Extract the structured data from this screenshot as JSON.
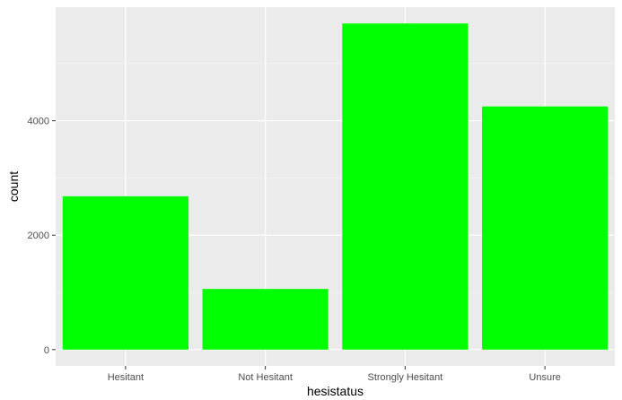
{
  "chart_data": {
    "type": "bar",
    "categories": [
      "Hesitant",
      "Not Hesitant",
      "Strongly Hesitant",
      "Unsure"
    ],
    "values": [
      2680,
      1060,
      5700,
      4250
    ],
    "xlabel": "hesistatus",
    "ylabel": "count",
    "ylim": [
      -285,
      5985
    ],
    "yticks": [
      0,
      2000,
      4000
    ],
    "yticklabels": [
      "0",
      "2000",
      "4000"
    ],
    "grid": true,
    "legend": "none",
    "colors": {
      "bar": "#00ff00",
      "panel": "#ebebeb",
      "grid_major": "#ffffff",
      "tick_text": "#4d4d4d",
      "tick_mark": "#333333"
    }
  }
}
